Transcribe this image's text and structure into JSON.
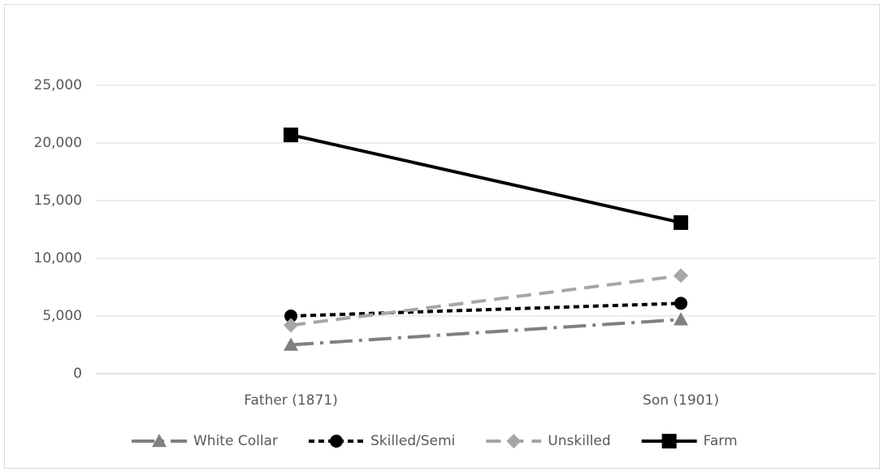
{
  "chart_data": {
    "type": "line",
    "categories": [
      "Father (1871)",
      "Son (1901)"
    ],
    "series": [
      {
        "name": "White Collar",
        "color": "#808080",
        "dash": "dash-dot",
        "marker": "triangle",
        "values": [
          2500,
          4700
        ]
      },
      {
        "name": "Skilled/Semi",
        "color": "#000000",
        "dash": "dot",
        "marker": "circle",
        "values": [
          5000,
          6100
        ]
      },
      {
        "name": "Unskilled",
        "color": "#a6a6a6",
        "dash": "dash",
        "marker": "diamond",
        "values": [
          4200,
          8500
        ]
      },
      {
        "name": "Farm",
        "color": "#000000",
        "dash": "solid",
        "marker": "square",
        "values": [
          20700,
          13100
        ]
      }
    ],
    "ylim": [
      0,
      25000
    ],
    "yticks": [
      0,
      {
        "value": 5000,
        "label": "5,000"
      },
      {
        "value": 10000,
        "label": "10,000"
      },
      {
        "value": 15000,
        "label": "15,000"
      },
      {
        "value": 20000,
        "label": "20,000"
      },
      {
        "value": 25000,
        "label": "25,000"
      }
    ],
    "grid": true,
    "legend": "bottom"
  }
}
